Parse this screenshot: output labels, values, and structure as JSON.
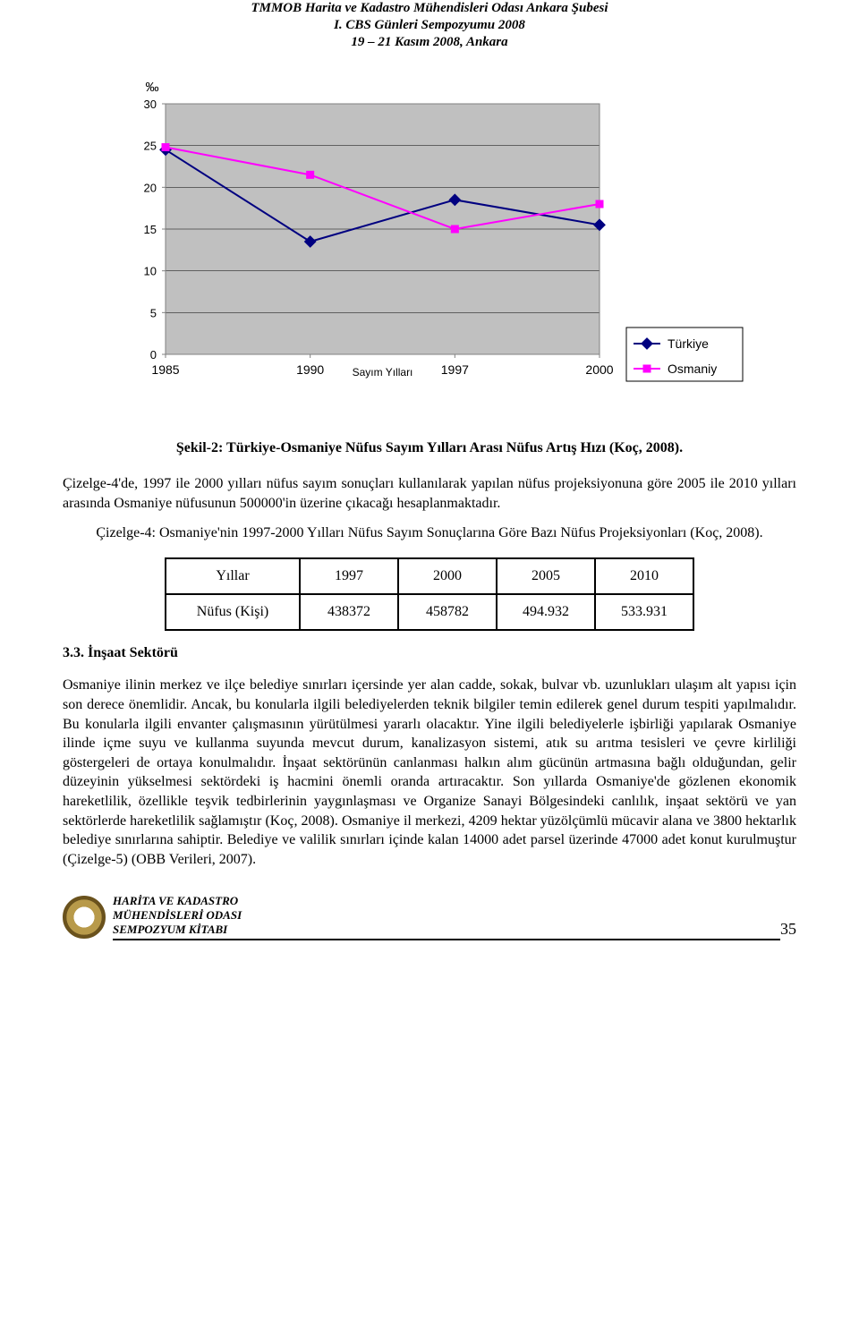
{
  "header": {
    "line1": "TMMOB Harita ve Kadastro Mühendisleri Odası Ankara Şubesi",
    "line2": "I. CBS Günleri Sempozyumu 2008",
    "line3": "19 – 21 Kasım 2008, Ankara"
  },
  "chart": {
    "type": "line",
    "y_label_top": "‰",
    "x_axis_title": "Sayım Yılları",
    "ylim": [
      0,
      30
    ],
    "ytick_step": 5,
    "yticks": [
      0,
      5,
      10,
      15,
      20,
      25,
      30
    ],
    "categories": [
      "1985",
      "1990",
      "1997",
      "2000"
    ],
    "series": [
      {
        "name": "Türkiye",
        "color": "#000080",
        "marker": "diamond",
        "marker_fill": "#000080",
        "values": [
          24.5,
          13.5,
          18.5,
          15.5
        ]
      },
      {
        "name": "Osmaniy",
        "color": "#ff00ff",
        "marker": "square",
        "marker_fill": "#ff00ff",
        "values": [
          24.8,
          21.5,
          15.0,
          18.0
        ]
      }
    ],
    "background_color": "#ffffff",
    "plot_fill": "#c0c0c0",
    "grid_color": "#000000",
    "grid_linewidth": 0.5,
    "line_width": 2,
    "marker_size": 9,
    "axis_line_color": "#808080",
    "legend_border": "#000000",
    "label_fontsize": 14,
    "tick_fontsize": 13
  },
  "chart_caption": "Şekil-2: Türkiye-Osmaniye Nüfus Sayım Yılları Arası Nüfus Artış Hızı (Koç, 2008).",
  "para_after_chart": "Çizelge-4'de, 1997 ile 2000 yılları nüfus sayım sonuçları kullanılarak yapılan nüfus projeksiyonuna göre 2005 ile 2010 yılları arasında Osmaniye nüfusunun 500000'in üzerine çıkacağı hesaplanmaktadır.",
  "table_caption": "Çizelge-4: Osmaniye'nin 1997-2000 Yılları Nüfus Sayım Sonuçlarına Göre Bazı Nüfus Projeksiyonları (Koç, 2008).",
  "table": {
    "columns": [
      "Yıllar",
      "1997",
      "2000",
      "2005",
      "2010"
    ],
    "rows": [
      [
        "Nüfus (Kişi)",
        "438372",
        "458782",
        "494.932",
        "533.931"
      ]
    ]
  },
  "section_heading": "3.3.    İnşaat Sektörü",
  "para_main": "Osmaniye ilinin merkez ve ilçe belediye sınırları içersinde yer alan cadde, sokak, bulvar vb. uzunlukları ulaşım alt yapısı için son derece önemlidir. Ancak, bu konularla ilgili belediyelerden teknik bilgiler temin edilerek genel durum tespiti yapılmalıdır. Bu konularla ilgili envanter çalışmasının yürütülmesi yararlı olacaktır. Yine ilgili belediyelerle işbirliği yapılarak Osmaniye ilinde içme suyu ve kullanma suyunda mevcut durum, kanalizasyon sistemi, atık su arıtma tesisleri ve çevre kirliliği göstergeleri de ortaya konulmalıdır. İnşaat sektörünün canlanması halkın alım gücünün artmasına bağlı olduğundan, gelir düzeyinin yükselmesi sektördeki iş hacmini önemli oranda artıracaktır. Son yıllarda Osmaniye'de gözlenen ekonomik hareketlilik, özellikle teşvik tedbirlerinin yaygınlaşması ve Organize Sanayi Bölgesindeki canlılık, inşaat sektörü ve yan sektörlerde hareketlilik sağlamıştır (Koç, 2008).  Osmaniye il merkezi, 4209 hektar yüzölçümlü mücavir alana ve 3800 hektarlık belediye sınırlarına sahiptir. Belediye ve valilik sınırları içinde kalan 14000 adet parsel üzerinde 47000 adet konut kurulmuştur (Çizelge-5) (OBB Verileri, 2007).",
  "footer": {
    "line1": "HARİTA VE KADASTRO MÜHENDİSLERİ ODASI",
    "line2": "SEMPOZYUM KİTABI",
    "page_number": "35"
  }
}
